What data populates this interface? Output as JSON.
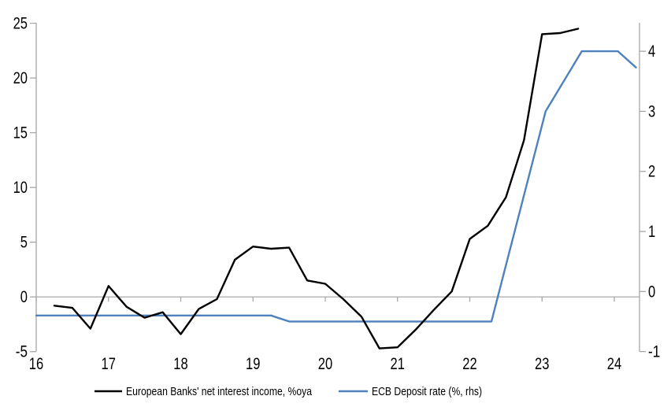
{
  "chart_data": {
    "type": "line",
    "title": "",
    "x_axis": {
      "min": 16,
      "max": 24.35,
      "ticks": [
        16,
        17,
        18,
        19,
        20,
        21,
        22,
        23,
        24
      ]
    },
    "left_axis": {
      "min": -5,
      "max": 25,
      "ticks": [
        25,
        20,
        15,
        10,
        5,
        0,
        -5
      ],
      "zero_line": true
    },
    "right_axis": {
      "min": -1,
      "max": 4.5,
      "ticks": [
        4,
        3,
        2,
        1,
        0,
        -1
      ]
    },
    "legend_position": "bottom",
    "grid": "zero-line-only",
    "series": [
      {
        "name": "European Banks' net interest income, %oya",
        "axis": "left",
        "color": "#000000",
        "points": [
          [
            16.25,
            -0.8
          ],
          [
            16.5,
            -1.0
          ],
          [
            16.75,
            -2.9
          ],
          [
            17.0,
            1.0
          ],
          [
            17.25,
            -0.9
          ],
          [
            17.5,
            -1.9
          ],
          [
            17.75,
            -1.4
          ],
          [
            18.0,
            -3.4
          ],
          [
            18.25,
            -1.1
          ],
          [
            18.5,
            -0.2
          ],
          [
            18.75,
            3.4
          ],
          [
            19.0,
            4.6
          ],
          [
            19.25,
            4.4
          ],
          [
            19.5,
            4.5
          ],
          [
            19.75,
            1.5
          ],
          [
            20.0,
            1.2
          ],
          [
            20.25,
            -0.2
          ],
          [
            20.5,
            -1.8
          ],
          [
            20.75,
            -4.7
          ],
          [
            21.0,
            -4.6
          ],
          [
            21.25,
            -3.0
          ],
          [
            21.5,
            -1.2
          ],
          [
            21.75,
            0.5
          ],
          [
            22.0,
            5.3
          ],
          [
            22.25,
            6.5
          ],
          [
            22.5,
            9.1
          ],
          [
            22.75,
            14.3
          ],
          [
            23.0,
            24.0
          ],
          [
            23.25,
            24.1
          ],
          [
            23.5,
            24.5
          ]
        ]
      },
      {
        "name": "ECB Deposit rate (%, rhs)",
        "axis": "right",
        "color": "#4f81bd",
        "points": [
          [
            16.0,
            -0.4
          ],
          [
            19.25,
            -0.4
          ],
          [
            19.5,
            -0.5
          ],
          [
            22.3,
            -0.5
          ],
          [
            23.05,
            3.0
          ],
          [
            23.55,
            4.0
          ],
          [
            24.05,
            4.0
          ],
          [
            24.3,
            3.73
          ]
        ]
      }
    ]
  },
  "colors": {
    "axis": "#a6a6a6",
    "zero_line": "#b0b0b0",
    "text": "#000000",
    "background": "#ffffff"
  }
}
